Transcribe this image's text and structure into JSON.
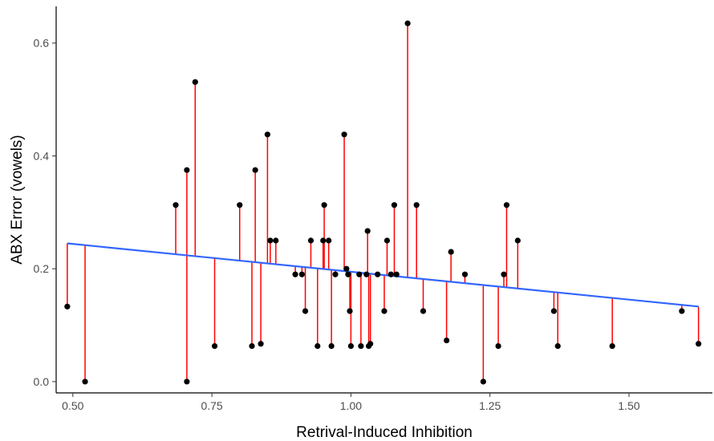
{
  "chart_data": {
    "type": "scatter",
    "title": "",
    "xlabel": "Retrival-Induced Inhibition",
    "ylabel": "ABX Error (vowels)",
    "xlim": [
      0.47,
      1.65
    ],
    "ylim": [
      -0.02,
      0.665
    ],
    "x_ticks": [
      0.5,
      0.75,
      1.0,
      1.25,
      1.5
    ],
    "x_tick_labels": [
      "0.50",
      "0.75",
      "1.00",
      "1.25",
      "1.50"
    ],
    "y_ticks": [
      0.0,
      0.2,
      0.4,
      0.6
    ],
    "y_tick_labels": [
      "0.0",
      "0.2",
      "0.4",
      "0.6"
    ],
    "grid": false,
    "legend": "none",
    "series": [
      {
        "type": "points",
        "color": "#000000",
        "points": [
          [
            0.49,
            0.133
          ],
          [
            0.522,
            0.0
          ],
          [
            0.685,
            0.313
          ],
          [
            0.705,
            0.375
          ],
          [
            0.705,
            0.0
          ],
          [
            0.72,
            0.531
          ],
          [
            0.755,
            0.063
          ],
          [
            0.8,
            0.313
          ],
          [
            0.822,
            0.063
          ],
          [
            0.828,
            0.375
          ],
          [
            0.838,
            0.067
          ],
          [
            0.85,
            0.438
          ],
          [
            0.855,
            0.25
          ],
          [
            0.865,
            0.25
          ],
          [
            0.9,
            0.19
          ],
          [
            0.912,
            0.19
          ],
          [
            0.918,
            0.125
          ],
          [
            0.928,
            0.25
          ],
          [
            0.94,
            0.063
          ],
          [
            0.95,
            0.25
          ],
          [
            0.952,
            0.313
          ],
          [
            0.96,
            0.25
          ],
          [
            0.965,
            0.063
          ],
          [
            0.972,
            0.19
          ],
          [
            0.988,
            0.438
          ],
          [
            0.992,
            0.2
          ],
          [
            0.995,
            0.19
          ],
          [
            0.998,
            0.125
          ],
          [
            1.0,
            0.063
          ],
          [
            1.015,
            0.19
          ],
          [
            1.018,
            0.063
          ],
          [
            1.028,
            0.19
          ],
          [
            1.03,
            0.267
          ],
          [
            1.032,
            0.063
          ],
          [
            1.035,
            0.067
          ],
          [
            1.048,
            0.19
          ],
          [
            1.06,
            0.125
          ],
          [
            1.065,
            0.25
          ],
          [
            1.072,
            0.19
          ],
          [
            1.078,
            0.313
          ],
          [
            1.082,
            0.19
          ],
          [
            1.102,
            0.635
          ],
          [
            1.118,
            0.313
          ],
          [
            1.13,
            0.125
          ],
          [
            1.172,
            0.073
          ],
          [
            1.18,
            0.23
          ],
          [
            1.205,
            0.19
          ],
          [
            1.238,
            0.0
          ],
          [
            1.265,
            0.063
          ],
          [
            1.275,
            0.19
          ],
          [
            1.28,
            0.313
          ],
          [
            1.3,
            0.25
          ],
          [
            1.365,
            0.125
          ],
          [
            1.372,
            0.063
          ],
          [
            1.47,
            0.063
          ],
          [
            1.595,
            0.125
          ],
          [
            1.625,
            0.067
          ]
        ]
      },
      {
        "type": "fit_line",
        "color": "#3366ff",
        "from": [
          0.49,
          0.245
        ],
        "to": [
          1.625,
          0.133
        ]
      },
      {
        "type": "residuals",
        "color": "#ff0000"
      }
    ]
  }
}
